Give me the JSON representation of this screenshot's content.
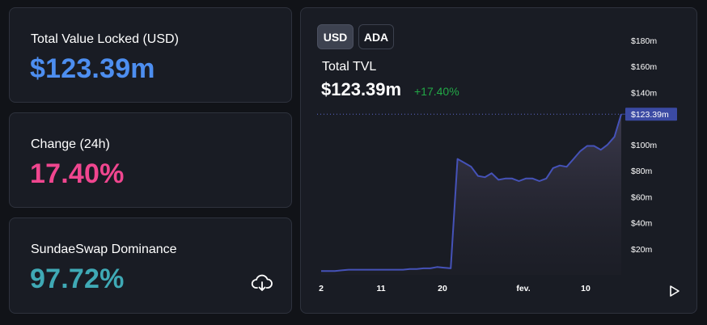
{
  "stats": {
    "tvl": {
      "label": "Total Value Locked (USD)",
      "value": "$123.39m",
      "color": "#4d8ef0"
    },
    "change": {
      "label": "Change (24h)",
      "value": "17.40%",
      "color": "#f0468f"
    },
    "dominance": {
      "label": "SundaeSwap Dominance",
      "value": "97.72%",
      "color": "#3fa9b5"
    }
  },
  "chart_panel": {
    "toggles": [
      "USD",
      "ADA"
    ],
    "active_toggle": "USD",
    "title": "Total TVL",
    "value": "$123.39m",
    "change": "+17.40%",
    "change_color": "#22a846",
    "price_tag": "$123.39m",
    "line_color": "#4552b8",
    "play_icon": "play-icon"
  },
  "chart_data": {
    "type": "area",
    "x_labels": [
      "2",
      "11",
      "20",
      "fev.",
      "10"
    ],
    "y_ticks": [
      "$20m",
      "$40m",
      "$60m",
      "$80m",
      "$100m",
      "$120m",
      "$140m",
      "$160m",
      "$180m"
    ],
    "ylim": [
      0,
      180
    ],
    "values": [
      3,
      3,
      3,
      3.5,
      4,
      4,
      4,
      4,
      4,
      4,
      4,
      4,
      4,
      4.5,
      4.5,
      5,
      5,
      6,
      5.5,
      5,
      89,
      86,
      83,
      76,
      75,
      78,
      73,
      74,
      74,
      72,
      74,
      74,
      72,
      74,
      82,
      84,
      83,
      89,
      95,
      99,
      99,
      96,
      100,
      106,
      123.39
    ],
    "current": 123.39,
    "grid": false
  }
}
